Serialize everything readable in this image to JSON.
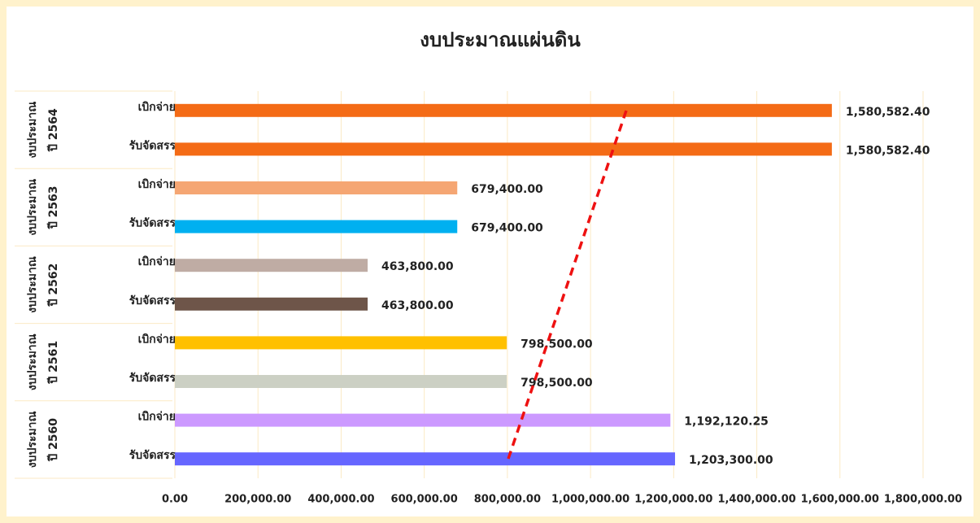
{
  "chart_data": {
    "type": "bar",
    "orientation": "horizontal",
    "title": "งบประมาณแผ่นดิน",
    "groups": [
      {
        "label": [
          "งบประมาณ",
          "ปี 2564"
        ],
        "categories": [
          "เบิกจ่าย",
          "รับจัดสรร"
        ],
        "values": [
          1580582.4,
          1580582.4
        ],
        "value_labels": [
          "1,580,582.40",
          "1,580,582.40"
        ],
        "colors": [
          "#f46b16",
          "#f46b16"
        ]
      },
      {
        "label": [
          "งบประมาณ",
          "ปี 2563"
        ],
        "categories": [
          "เบิกจ่าย",
          "รับจัดสรร"
        ],
        "values": [
          679400.0,
          679400.0
        ],
        "value_labels": [
          "679,400.00",
          "679,400.00"
        ],
        "colors": [
          "#f5a673",
          "#00b0f0"
        ]
      },
      {
        "label": [
          "งบประมาณ",
          "ปี 2562"
        ],
        "categories": [
          "เบิกจ่าย",
          "รับจัดสรร"
        ],
        "values": [
          463800.0,
          463800.0
        ],
        "value_labels": [
          "463,800.00",
          "463,800.00"
        ],
        "colors": [
          "#bfaca4",
          "#6e5549"
        ]
      },
      {
        "label": [
          "งบประมาณ",
          "ปี 2561"
        ],
        "categories": [
          "เบิกจ่าย",
          "รับจัดสรร"
        ],
        "values": [
          798500.0,
          798500.0
        ],
        "value_labels": [
          "798,500.00",
          "798,500.00"
        ],
        "colors": [
          "#ffc000",
          "#ccd0c4"
        ]
      },
      {
        "label": [
          "งบประมาณ",
          "ปี 2560"
        ],
        "categories": [
          "เบิกจ่าย",
          "รับจัดสรร"
        ],
        "values": [
          1192120.25,
          1203300.0
        ],
        "value_labels": [
          "1,192,120.25",
          "1,203,300.00"
        ],
        "colors": [
          "#cc99ff",
          "#6666ff"
        ]
      }
    ],
    "xlim": [
      0,
      1800000
    ],
    "xticks": [
      {
        "value": 0,
        "label": "0.00"
      },
      {
        "value": 200000,
        "label": "200,000.00"
      },
      {
        "value": 400000,
        "label": "400,000.00"
      },
      {
        "value": 600000,
        "label": "600,000.00"
      },
      {
        "value": 800000,
        "label": "800,000.00"
      },
      {
        "value": 1000000,
        "label": "1,000,000.00"
      },
      {
        "value": 1200000,
        "label": "1,200,000.00"
      },
      {
        "value": 1400000,
        "label": "1,400,000.00"
      },
      {
        "value": 1600000,
        "label": "1,600,000.00"
      },
      {
        "value": 1800000,
        "label": "1,800,000.00"
      }
    ],
    "grid": true
  }
}
